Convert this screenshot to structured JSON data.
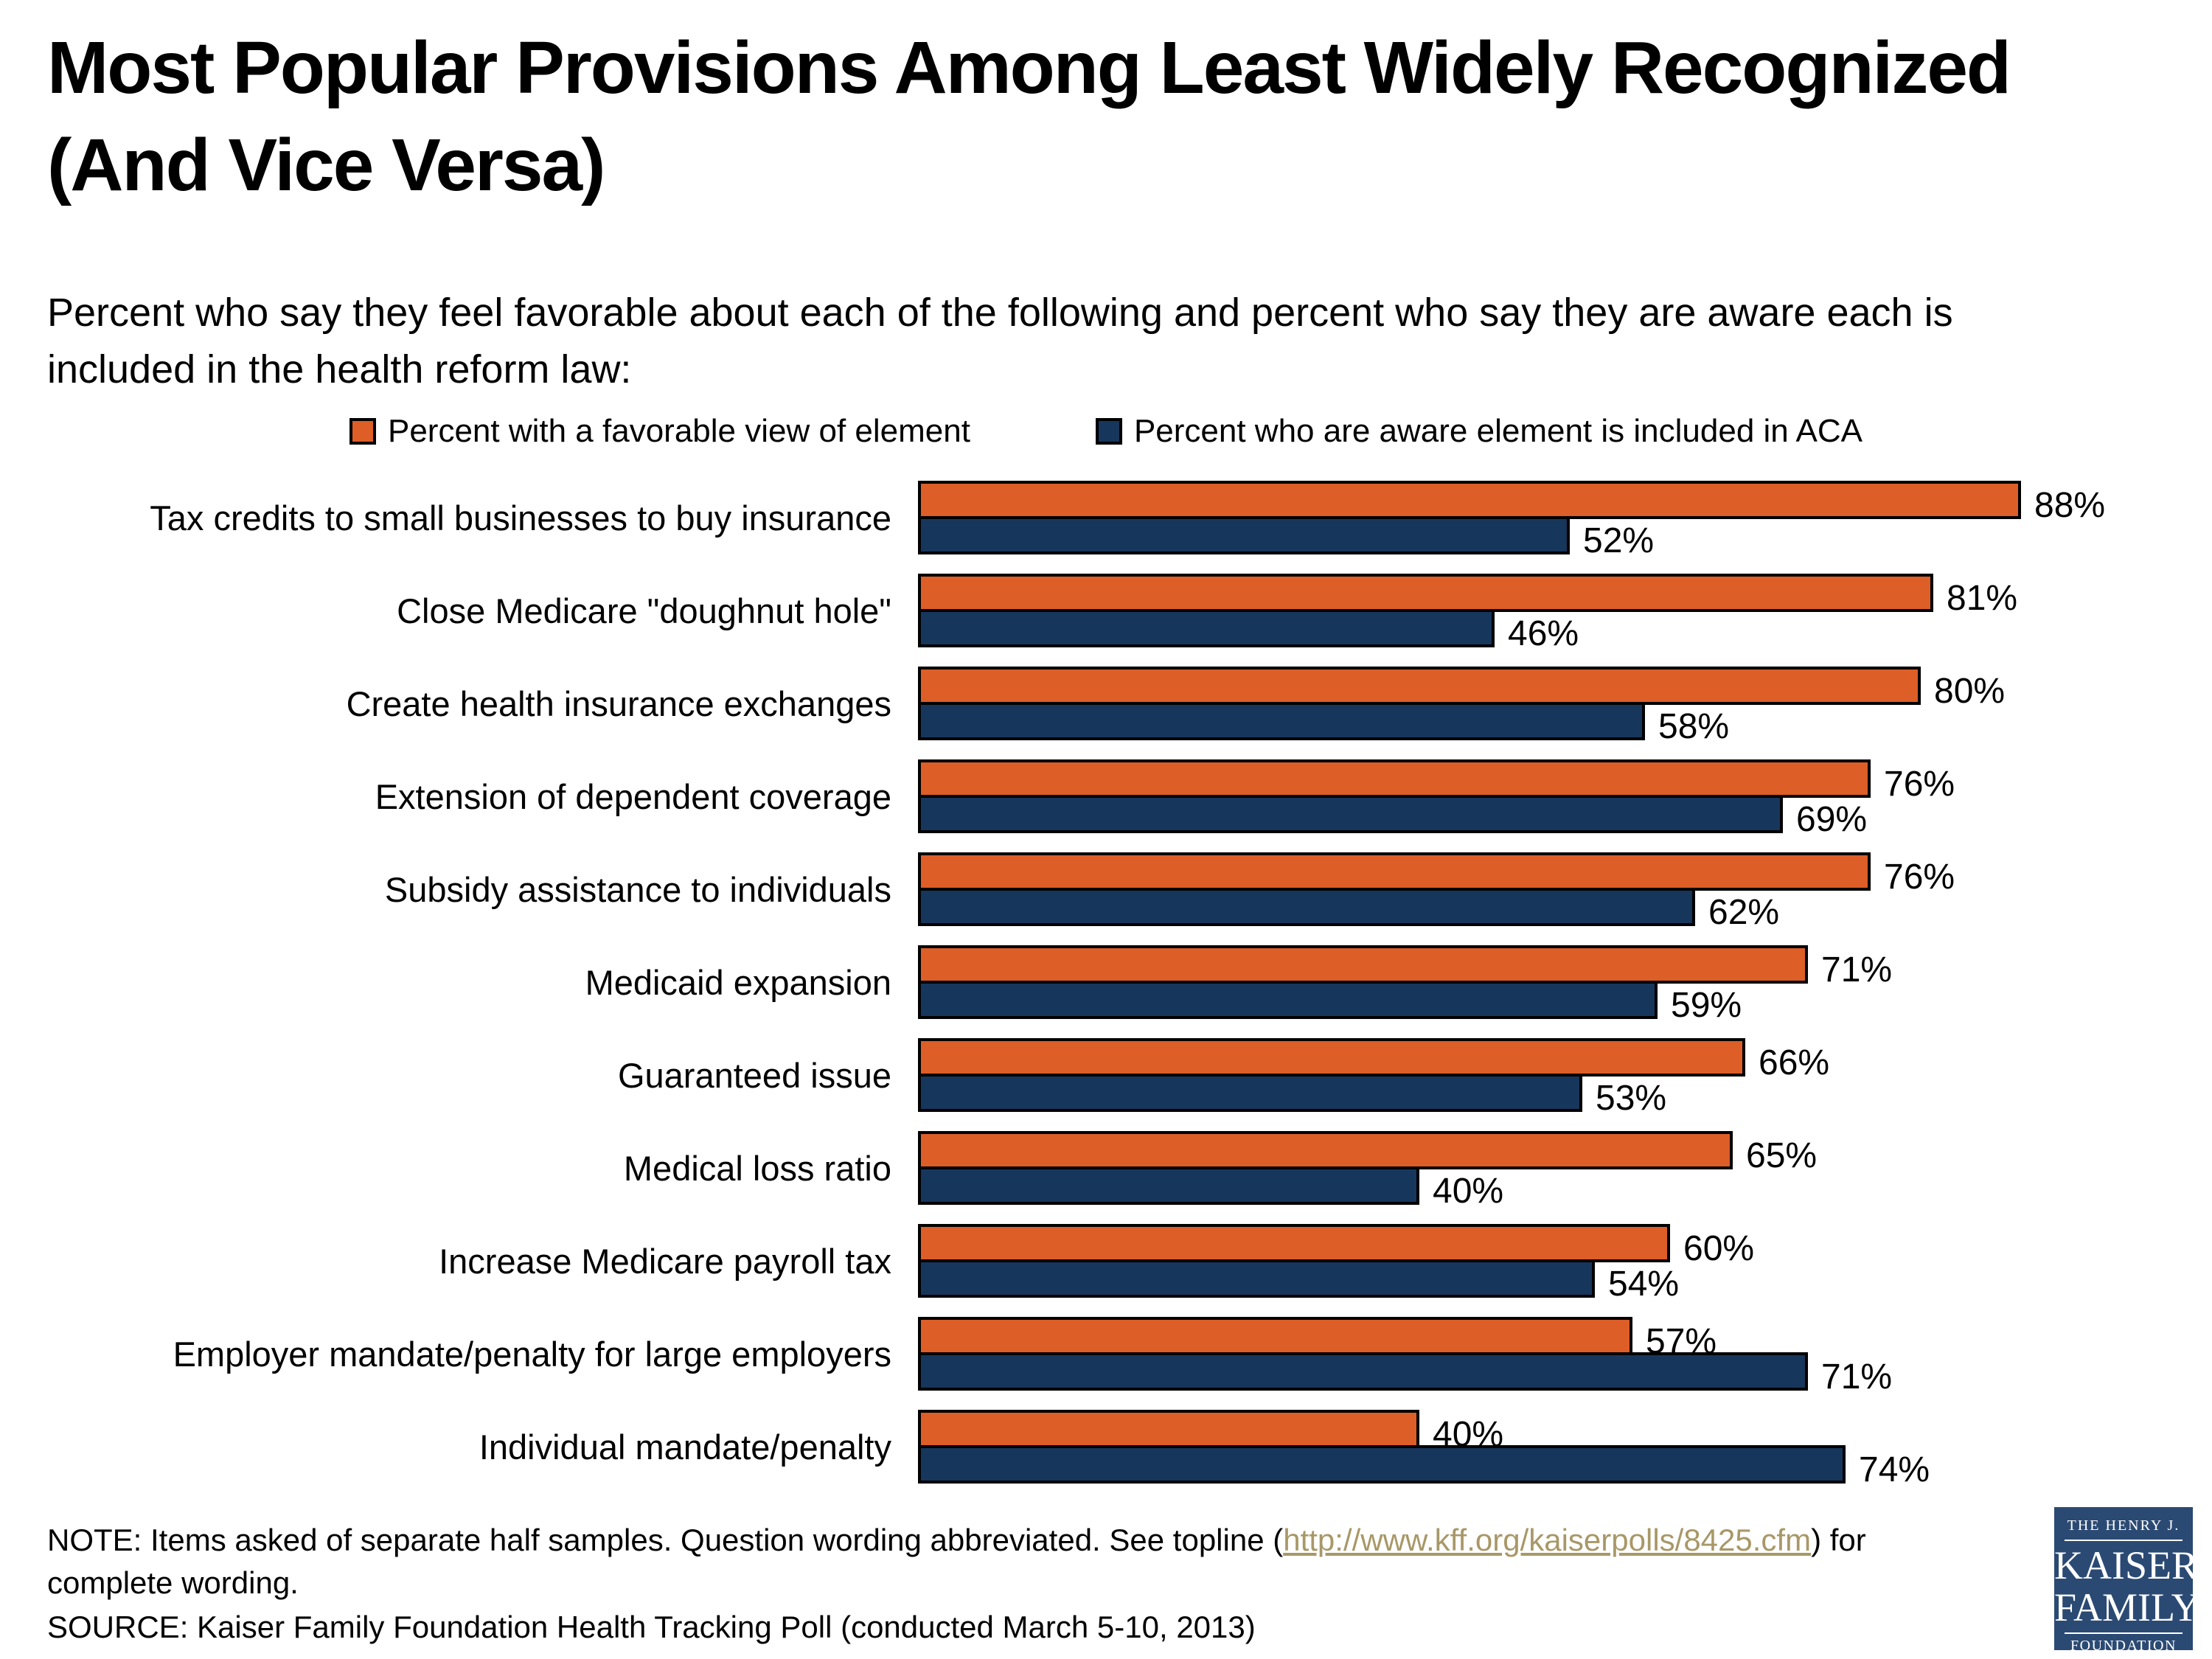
{
  "title_line1": "Most Popular Provisions Among Least Widely Recognized",
  "title_line2": "(And Vice Versa)",
  "subtitle": "Percent who say they feel favorable about each of the following and percent who say they are aware each is included in the health reform law:",
  "legend": [
    {
      "label": "Percent with a favorable view of element",
      "color": "#DD5E27"
    },
    {
      "label": "Percent who are aware element is included in ACA",
      "color": "#17365C"
    }
  ],
  "chart_data": {
    "type": "bar",
    "orientation": "horizontal",
    "title": "Most Popular Provisions Among Least Widely Recognized (And Vice Versa)",
    "xlabel": "",
    "ylabel": "",
    "xlim": [
      0,
      100
    ],
    "grid": false,
    "legend_position": "top",
    "value_suffix": "%",
    "categories": [
      "Tax credits to small businesses to buy insurance",
      "Close Medicare \"doughnut hole\"",
      "Create health insurance exchanges",
      "Extension of dependent coverage",
      "Subsidy assistance to individuals",
      "Medicaid expansion",
      "Guaranteed issue",
      "Medical loss ratio",
      "Increase Medicare payroll tax",
      "Employer mandate/penalty for large employers",
      "Individual mandate/penalty"
    ],
    "series": [
      {
        "name": "Percent with a favorable view of element",
        "color": "#DD5E27",
        "values": [
          88,
          81,
          80,
          76,
          76,
          71,
          66,
          65,
          60,
          57,
          40
        ]
      },
      {
        "name": "Percent who are aware element is included in ACA",
        "color": "#17365C",
        "values": [
          52,
          46,
          58,
          69,
          62,
          59,
          53,
          40,
          54,
          71,
          74
        ]
      }
    ]
  },
  "notes": {
    "note_prefix": "NOTE: Items asked of separate half samples. Question wording abbreviated. See topline (",
    "note_link": "http://www.kff.org/kaiserpolls/8425.cfm",
    "note_paren": ")",
    "note_suffix": " for complete wording.",
    "source": "SOURCE: Kaiser Family Foundation Health Tracking Poll (conducted March 5-10, 2013)"
  },
  "logo": {
    "line1": "THE HENRY J.",
    "line2": "KAISER",
    "line3": "FAMILY",
    "line4": "FOUNDATION",
    "bg_color": "#2B4A73"
  },
  "colors": {
    "favorable": "#DD5E27",
    "aware": "#17365C",
    "bar_border": "#000000",
    "link": "#A89868",
    "text": "#000000"
  }
}
